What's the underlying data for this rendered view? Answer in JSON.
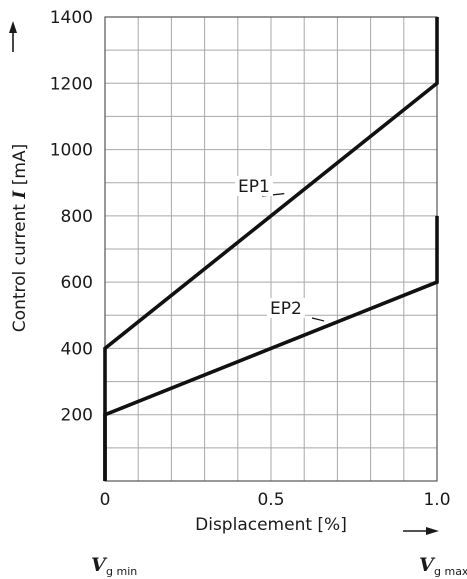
{
  "chart_data": {
    "type": "line",
    "xlabel": "Displacement [%]",
    "ylabel_prefix": "Control current ",
    "ylabel_var": "I",
    "ylabel_unit": " [mA]",
    "xlim": [
      0,
      1.0
    ],
    "ylim": [
      0,
      1400
    ],
    "x_ticks": [
      {
        "value": 0,
        "label": "0"
      },
      {
        "value": 0.5,
        "label": "0.5"
      },
      {
        "value": 1.0,
        "label": "1.0"
      }
    ],
    "y_ticks": [
      {
        "value": 200,
        "label": "200"
      },
      {
        "value": 400,
        "label": "400"
      },
      {
        "value": 600,
        "label": "600"
      },
      {
        "value": 800,
        "label": "800"
      },
      {
        "value": 1000,
        "label": "1000"
      },
      {
        "value": 1200,
        "label": "1200"
      },
      {
        "value": 1400,
        "label": "1400"
      }
    ],
    "grid": true,
    "series": [
      {
        "name": "EP1",
        "points": [
          [
            0,
            0
          ],
          [
            0,
            400
          ],
          [
            1.0,
            1200
          ],
          [
            1.0,
            1400
          ]
        ]
      },
      {
        "name": "EP2",
        "points": [
          [
            0,
            0
          ],
          [
            0,
            200
          ],
          [
            1.0,
            600
          ],
          [
            1.0,
            800
          ]
        ]
      }
    ],
    "annotations": [
      {
        "series": "EP1",
        "label": "EP1",
        "at": [
          0.54,
          867
        ]
      },
      {
        "series": "EP2",
        "label": "EP2",
        "at": [
          0.66,
          483
        ]
      }
    ],
    "x_end_labels": {
      "left_symbol": "V",
      "left_sub": "g min",
      "right_symbol": "V",
      "right_sub": "g max"
    }
  }
}
